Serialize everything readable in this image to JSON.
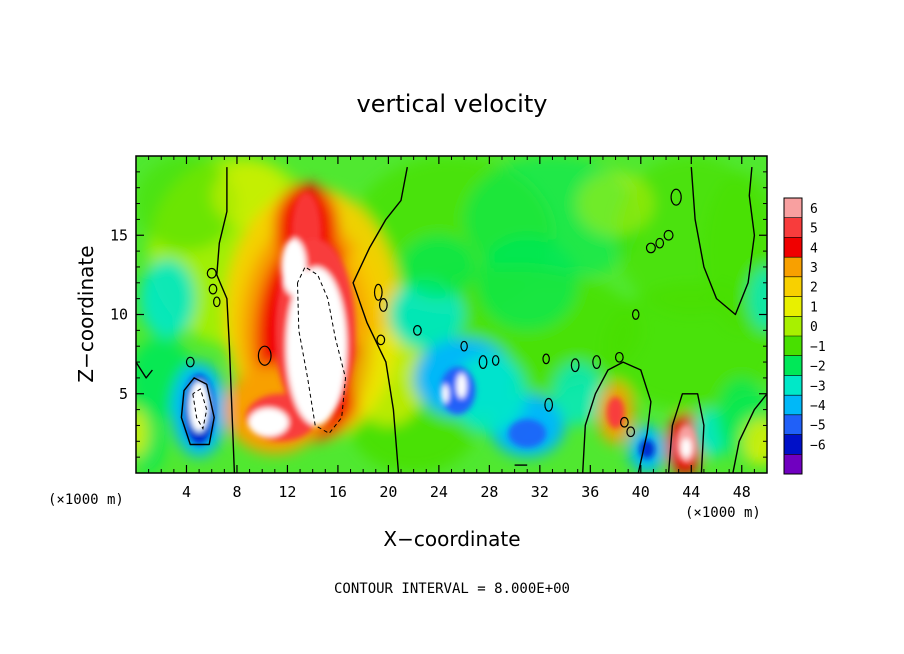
{
  "chart_data": {
    "type": "heatmap",
    "title": "vertical velocity",
    "xlabel": "X−coordinate",
    "ylabel": "Z−coordinate",
    "x_unit_label": "(×1000 m)",
    "x_ticks": [
      "4",
      "8",
      "12",
      "16",
      "20",
      "24",
      "28",
      "32",
      "36",
      "40",
      "44",
      "48"
    ],
    "x_tick_values": [
      4,
      8,
      12,
      16,
      20,
      24,
      28,
      32,
      36,
      40,
      44,
      48
    ],
    "y_ticks": [
      "5",
      "10",
      "15"
    ],
    "y_tick_values": [
      5,
      10,
      15
    ],
    "xlim": [
      0,
      50
    ],
    "ylim": [
      0,
      20
    ],
    "colorbar": {
      "labels": [
        "6",
        "5",
        "4",
        "3",
        "2",
        "1",
        "0",
        "−1",
        "−2",
        "−3",
        "−4",
        "−5",
        "−6"
      ],
      "colors": [
        "#f8a0a0",
        "#f83c3c",
        "#f00000",
        "#f8a000",
        "#f8d000",
        "#e8f000",
        "#a8f000",
        "#48e000",
        "#00e858",
        "#00e8c8",
        "#00b8f8",
        "#2060f8",
        "#0010c8",
        "#7000c0"
      ]
    },
    "contour_interval_text": "CONTOUR INTERVAL = 8.000E+00",
    "features": [
      {
        "name": "updraft core",
        "x": 14,
        "z": 8.5,
        "value": 8
      },
      {
        "name": "updraft tower top",
        "x": 13.5,
        "z": 16,
        "value": 6
      },
      {
        "name": "updraft lower lobe",
        "x": 11,
        "z": 4,
        "value": 7
      },
      {
        "name": "downdraft",
        "x": 5,
        "z": 4,
        "value": -8
      },
      {
        "name": "downdraft",
        "x": 26,
        "z": 5,
        "value": -8
      },
      {
        "name": "downdraft",
        "x": 31,
        "z": 3,
        "value": -5
      },
      {
        "name": "downdraft",
        "x": 40.5,
        "z": 1.5,
        "value": -5
      },
      {
        "name": "updraft",
        "x": 43.5,
        "z": 1.5,
        "value": 7
      },
      {
        "name": "updraft",
        "x": 38,
        "z": 3.8,
        "value": 4
      }
    ]
  }
}
